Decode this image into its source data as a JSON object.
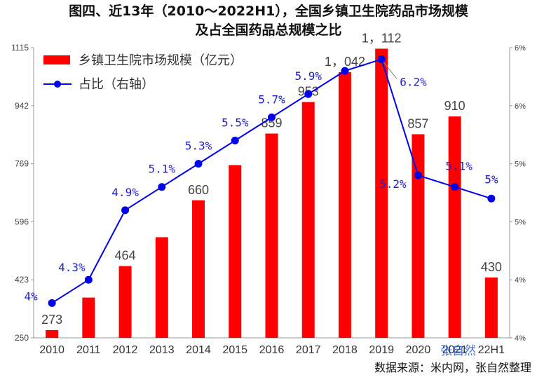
{
  "chart_data": {
    "type": "bar+line",
    "title_lines": [
      "图四、近13年（2010～2022H1），全国乡镇卫生院药品市场规模",
      "及占全国药品总规模之比"
    ],
    "categories": [
      "2010",
      "2011",
      "2012",
      "2013",
      "2014",
      "2015",
      "2016",
      "2017",
      "2018",
      "2019",
      "2020",
      "2021",
      "22H1"
    ],
    "series": [
      {
        "name": "乡镇卫生院市场规模（亿元）",
        "type": "bar",
        "axis": "left",
        "color": "#ff0000",
        "values": [
          273,
          370,
          464,
          550,
          660,
          765,
          859,
          953,
          1042,
          1112,
          857,
          910,
          430
        ],
        "labels": [
          "273",
          "",
          "464",
          "",
          "660",
          "",
          "859",
          "953",
          "1，042",
          "1，112",
          "857",
          "910",
          "430"
        ]
      },
      {
        "name": "占比（右轴）",
        "type": "line",
        "axis": "right",
        "color": "#0000ee",
        "values": [
          4.1,
          4.3,
          4.9,
          5.1,
          5.3,
          5.5,
          5.7,
          5.9,
          6.1,
          6.2,
          5.2,
          5.1,
          5.0
        ],
        "labels": [
          "4%",
          "4.3%",
          "4.9%",
          "5.1%",
          "5.3%",
          "5.5%",
          "5.7%",
          "5.9%",
          "",
          "6.2%",
          "5.2%",
          "5.1%",
          "5%"
        ]
      }
    ],
    "left_axis": {
      "ylim": [
        250,
        1115
      ],
      "ticks": [
        "250",
        "423",
        "596",
        "769",
        "942",
        "1115"
      ]
    },
    "right_axis": {
      "ylim": [
        3.8,
        6.3
      ],
      "ticks": [
        "4%",
        "4%",
        "5%",
        "5%",
        "6%",
        "6%"
      ]
    },
    "legend_placement": "top-left",
    "grid": false,
    "source": "数据来源：米内网，张自然整理",
    "watermark": "张自然"
  }
}
